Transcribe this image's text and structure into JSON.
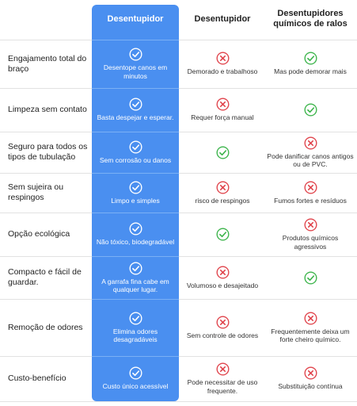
{
  "headers": [
    "Desentupidor",
    "Desentupidor",
    "Desentupidores químicos de ralos"
  ],
  "rows": [
    {
      "label": "Engajamento total do braço",
      "cells": [
        {
          "icon": "check-icon",
          "text": "Desentope canos em minutos"
        },
        {
          "icon": "cross-icon",
          "text": "Demorado e trabalhoso"
        },
        {
          "icon": "check-icon",
          "text": "Mas pode demorar mais"
        }
      ]
    },
    {
      "label": "Limpeza sem contato",
      "cells": [
        {
          "icon": "check-icon",
          "text": "Basta despejar e esperar."
        },
        {
          "icon": "cross-icon",
          "text": "Requer força manual"
        },
        {
          "icon": "check-icon",
          "text": ""
        }
      ]
    },
    {
      "label": "Seguro para todos os tipos de tubulação",
      "cells": [
        {
          "icon": "check-icon",
          "text": "Sem corrosão ou danos"
        },
        {
          "icon": "check-icon",
          "text": ""
        },
        {
          "icon": "cross-icon",
          "text": "Pode danificar canos antigos ou de PVC."
        }
      ]
    },
    {
      "label": "Sem sujeira ou respingos",
      "cells": [
        {
          "icon": "check-icon",
          "text": "Limpo e simples"
        },
        {
          "icon": "cross-icon",
          "text": "risco de respingos"
        },
        {
          "icon": "cross-icon",
          "text": "Fumos fortes e resíduos"
        }
      ]
    },
    {
      "label": "Opção ecológica",
      "cells": [
        {
          "icon": "check-icon",
          "text": "Não tóxico, biodegradável"
        },
        {
          "icon": "check-icon",
          "text": ""
        },
        {
          "icon": "cross-icon",
          "text": "Produtos químicos agressivos"
        }
      ]
    },
    {
      "label": "Compacto e fácil de guardar.",
      "cells": [
        {
          "icon": "check-icon",
          "text": "A garrafa fina cabe em qualquer lugar."
        },
        {
          "icon": "cross-icon",
          "text": "Volumoso e desajeitado"
        },
        {
          "icon": "check-icon",
          "text": ""
        }
      ]
    },
    {
      "label": "Remoção de odores",
      "cells": [
        {
          "icon": "check-icon",
          "text": "Elimina odores desagradáveis"
        },
        {
          "icon": "cross-icon",
          "text": "Sem controle de odores"
        },
        {
          "icon": "cross-icon",
          "text": "Frequentemente deixa um forte cheiro químico."
        }
      ]
    },
    {
      "label": "Custo-benefício",
      "cells": [
        {
          "icon": "check-icon",
          "text": "Custo único acessível"
        },
        {
          "icon": "cross-icon",
          "text": "Pode necessitar de uso frequente."
        },
        {
          "icon": "cross-icon",
          "text": "Substituição contínua"
        }
      ]
    }
  ],
  "colors": {
    "highlight": "#4a8ff0",
    "check": "#3cb44b",
    "cross": "#e0434b",
    "check_on_highlight": "#ffffff"
  }
}
